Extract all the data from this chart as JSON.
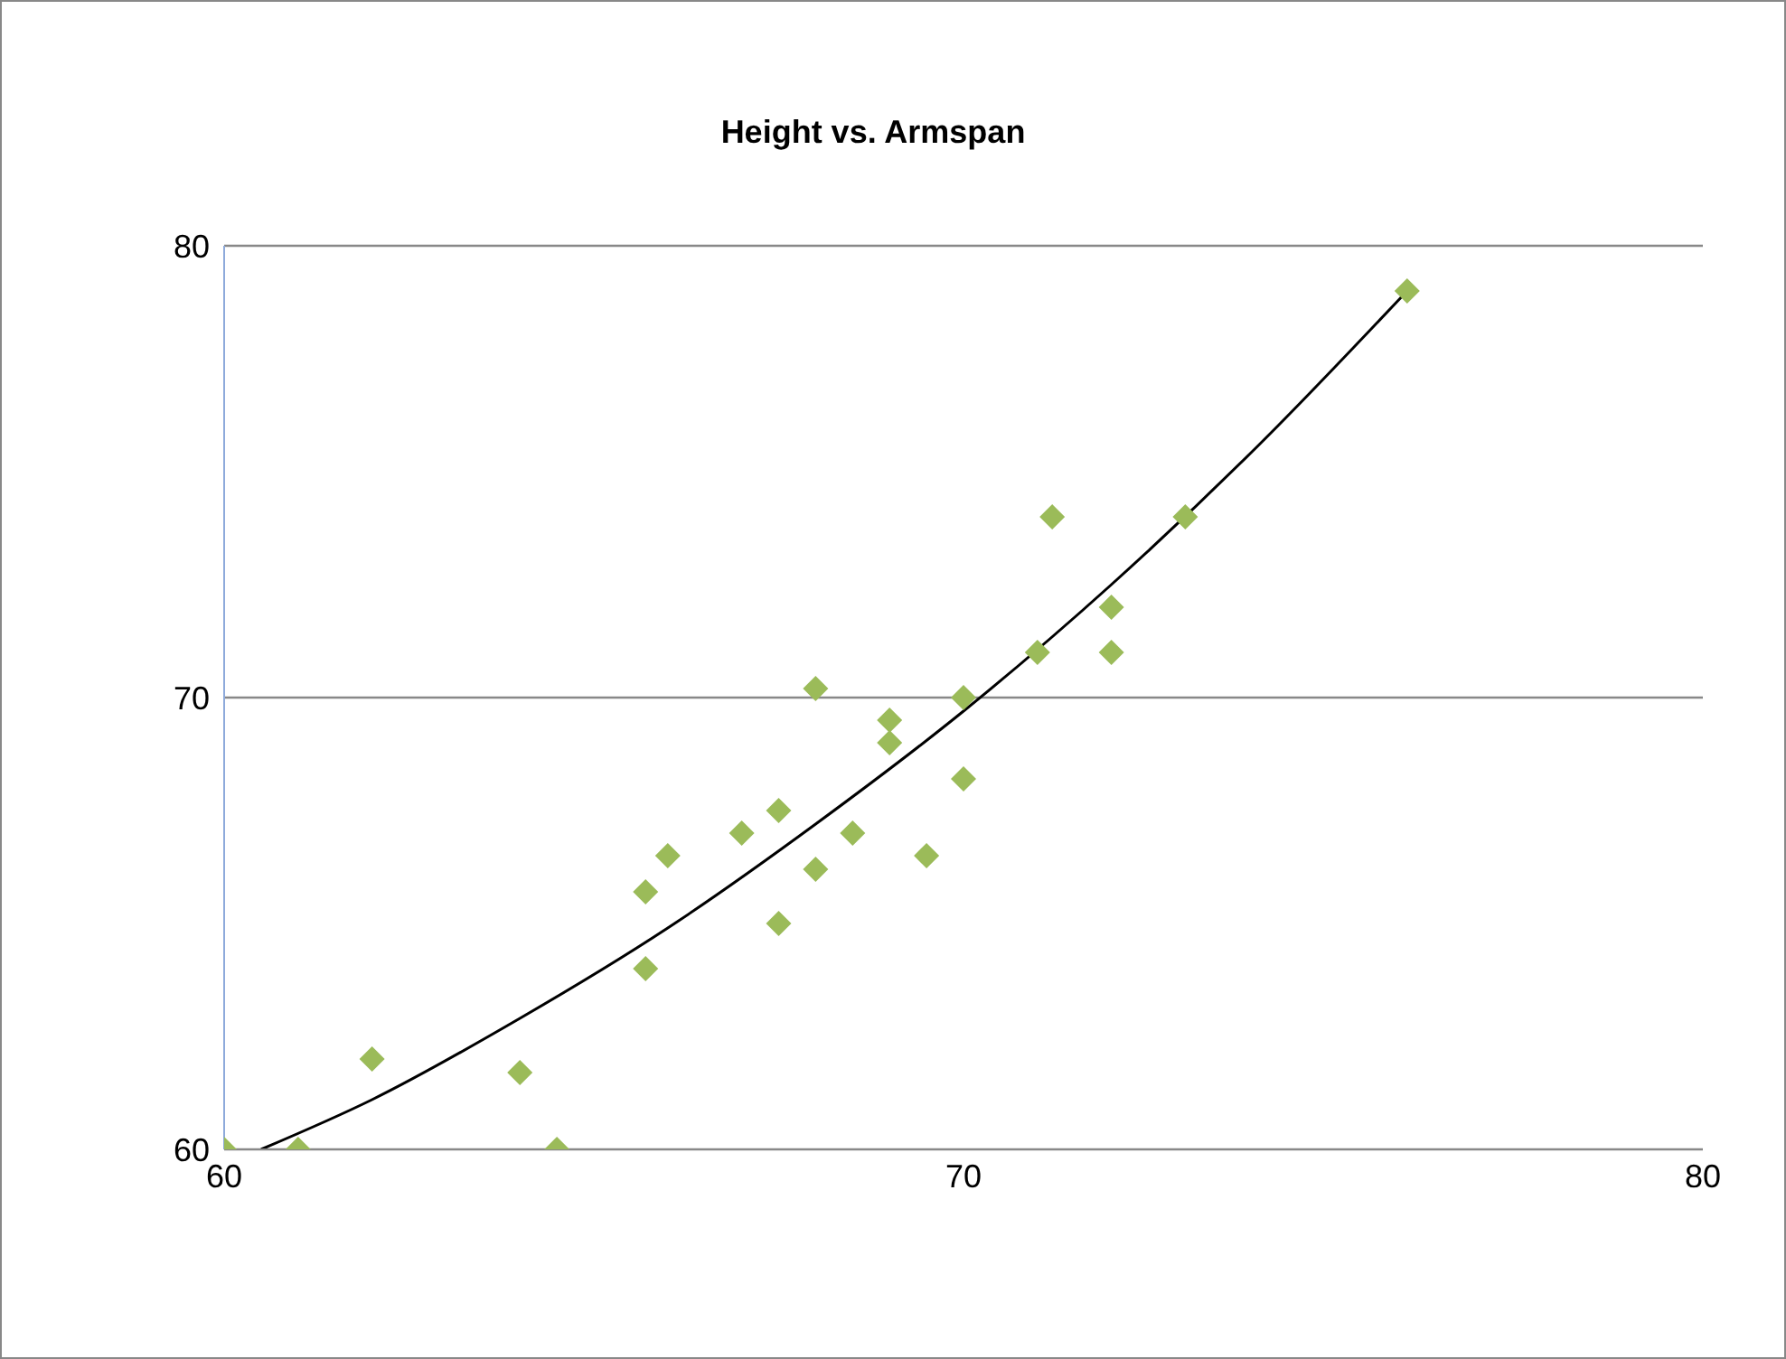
{
  "chart_data": {
    "type": "scatter",
    "title": "Height vs. Armspan",
    "xlim": [
      60,
      80
    ],
    "xticks": [
      60,
      70,
      80
    ],
    "ylim": [
      60,
      80
    ],
    "yticks": [
      60,
      70,
      80
    ],
    "grid": "y",
    "marker": "diamond",
    "series": [
      {
        "color": "#9bbb59",
        "x": [
          60,
          61,
          62,
          64,
          64.5,
          65.7,
          65.7,
          66,
          67,
          67.5,
          67.5,
          68,
          68,
          68.5,
          69,
          69,
          69.5,
          70,
          70,
          71,
          71.2,
          72,
          72,
          73,
          76
        ],
        "values": [
          60,
          60,
          62,
          61.7,
          60,
          64,
          65.7,
          66.5,
          67,
          67.5,
          65,
          70.2,
          66.2,
          67,
          69.5,
          69,
          66.5,
          70,
          68.2,
          71,
          74,
          72,
          71,
          74,
          79
        ]
      },
      {
        "type": "line",
        "color": "#000000",
        "marker": "none",
        "x": [
          60.5,
          62,
          64,
          66,
          68,
          70,
          72,
          74,
          76
        ],
        "values": [
          60,
          61.1,
          62.9,
          64.9,
          67.2,
          69.7,
          72.5,
          75.6,
          79
        ]
      }
    ]
  }
}
